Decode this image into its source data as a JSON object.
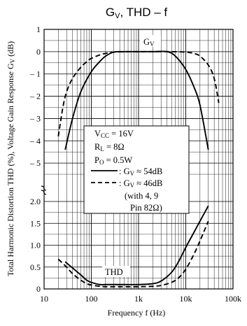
{
  "chart_data": {
    "type": "line",
    "title": "G",
    "title_sub": "V",
    "title_rest": ", THD – f",
    "xlabel": "Frequency f (Hz)",
    "ylabel": "Total Harmonic Distortion THD (%), Voltage Gain Response G",
    "ylabel_sub": "V",
    "ylabel_tail": " (dB)",
    "x_scale": "log",
    "xlim": [
      10,
      100000
    ],
    "x_ticks": [
      10,
      100,
      1000,
      10000,
      100000
    ],
    "x_tick_labels": [
      "10",
      "100",
      "1k",
      "10k",
      "100k"
    ],
    "upper_axis": {
      "ylim": [
        -6,
        1
      ],
      "ticks": [
        1,
        0,
        -1,
        -2,
        -3,
        -4,
        -5
      ],
      "tick_labels": [
        "1",
        "0",
        "– 1",
        "– 2",
        "– 3",
        "– 4",
        "– 5"
      ],
      "label": "Voltage Gain Response GV (dB)"
    },
    "lower_axis": {
      "ylim": [
        0,
        2.0
      ],
      "ticks": [
        0,
        0.5,
        1.0,
        1.5,
        2.0
      ],
      "tick_labels": [
        "0",
        "0.5",
        "1.0",
        "1.5",
        "2.0"
      ],
      "label": "THD (%)"
    },
    "grid": true,
    "annotations": {
      "gv_label_main": "G",
      "gv_label_sub": "V",
      "thd_label": "THD"
    },
    "legend": {
      "line1_main": "V",
      "line1_sub": "CC",
      "line1_tail": " = 16V",
      "line2_main": "R",
      "line2_sub": "L",
      "line2_tail": " = 8Ω",
      "line3_main": "P",
      "line3_sub": "O",
      "line3_tail": " = 0.5W",
      "solid_main": ": G",
      "solid_sub": "V",
      "solid_tail": " ≈ 54dB",
      "dashed_main": ": G",
      "dashed_sub": "V",
      "dashed_tail": " ≈ 46dB",
      "note1": "(with 4, 9",
      "note2": "Pin 82Ω)"
    },
    "series": [
      {
        "name": "GV ≈ 54dB",
        "style": "solid",
        "axis": "upper",
        "x": [
          28,
          40,
          60,
          100,
          150,
          200,
          300,
          500,
          1000,
          2000,
          4000,
          6000,
          10000,
          15000,
          20000,
          30000
        ],
        "y": [
          -4.4,
          -3.0,
          -1.8,
          -0.9,
          -0.45,
          -0.2,
          -0.02,
          0,
          0,
          0,
          0,
          -0.2,
          -0.8,
          -1.6,
          -2.4,
          -4.4
        ]
      },
      {
        "name": "GV ≈ 46dB",
        "style": "dashed",
        "axis": "upper",
        "x": [
          20,
          25,
          30,
          40,
          60,
          80,
          100,
          150,
          200,
          300,
          500,
          1000,
          5000,
          10000,
          15000,
          20000,
          30000,
          40000,
          50000
        ],
        "y": [
          -3.8,
          -2.5,
          -1.8,
          -1.2,
          -0.7,
          -0.45,
          -0.3,
          -0.15,
          -0.08,
          -0.02,
          0,
          0,
          0,
          -0.02,
          -0.08,
          -0.2,
          -0.6,
          -1.2,
          -2.3
        ]
      },
      {
        "name": "THD (GV ≈ 54dB)",
        "style": "solid",
        "axis": "lower",
        "x": [
          28,
          40,
          60,
          80,
          100,
          150,
          200,
          300,
          500,
          1000,
          2000,
          3000,
          5000,
          7000,
          10000,
          15000,
          20000,
          30000
        ],
        "y": [
          0.62,
          0.48,
          0.32,
          0.2,
          0.15,
          0.1,
          0.1,
          0.1,
          0.1,
          0.1,
          0.12,
          0.18,
          0.38,
          0.62,
          0.95,
          1.3,
          1.55,
          1.9
        ]
      },
      {
        "name": "THD (GV ≈ 46dB)",
        "style": "dashed",
        "axis": "lower",
        "x": [
          20,
          30,
          40,
          60,
          80,
          100,
          150,
          200,
          300,
          500,
          1000,
          2000,
          3000,
          5000,
          7000,
          10000,
          15000,
          20000,
          30000
        ],
        "y": [
          0.68,
          0.5,
          0.35,
          0.2,
          0.12,
          0.09,
          0.06,
          0.05,
          0.05,
          0.05,
          0.05,
          0.06,
          0.08,
          0.15,
          0.25,
          0.45,
          0.8,
          1.1,
          1.55
        ]
      }
    ]
  }
}
